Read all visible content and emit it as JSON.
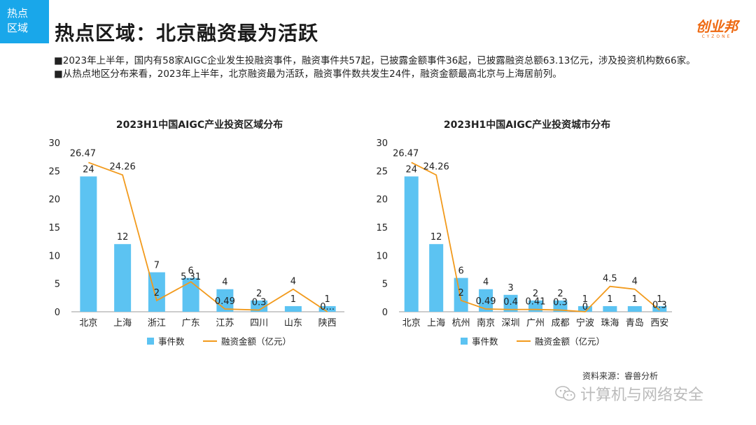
{
  "tag": {
    "line1": "热点",
    "line2": "区域"
  },
  "title": "热点区域：北京融资最为活跃",
  "logo": {
    "cn": "创业邦",
    "en": "CYZONE"
  },
  "bullets": [
    "■2023年上半年，国内有58家AIGC企业发生投融资事件，融资事件共57起，已披露金额事件36起，已披露融资总额63.13亿元，涉及投资机构数66家。",
    "■从热点地区分布来看，2023年上半年，北京融资最为活跃，融资事件数共发生24件，融资金额最高北京与上海居前列。"
  ],
  "colors": {
    "bar": "#5cc3f2",
    "line": "#f29a1c",
    "accent": "#19a7ea"
  },
  "chart_data": [
    {
      "type": "bar",
      "title": "2023H1中国AIGC产业投资区域分布",
      "categories": [
        "北京",
        "上海",
        "浙江",
        "广东",
        "江苏",
        "四川",
        "山东",
        "陕西"
      ],
      "series": [
        {
          "name": "事件数",
          "type": "bar",
          "values": [
            24,
            12,
            7,
            6,
            4,
            2,
            1,
            1
          ],
          "labels": [
            "24",
            "12",
            "7",
            "6",
            "4",
            "2",
            "1",
            "1"
          ]
        },
        {
          "name": "融资金额（亿元）",
          "type": "line",
          "values": [
            26.47,
            24.26,
            2,
            5.31,
            0.49,
            0.3,
            4,
            0
          ],
          "labels": [
            "26.47",
            "24.26",
            "2",
            "5.31",
            "0.49",
            "0.3",
            "4",
            "0..."
          ]
        }
      ],
      "ylim": [
        0,
        30
      ],
      "yticks": [
        "0",
        "5",
        "10",
        "15",
        "20",
        "25",
        "30"
      ],
      "legend": "bottom"
    },
    {
      "type": "bar",
      "title": "2023H1中国AIGC产业投资城市分布",
      "categories": [
        "北京",
        "上海",
        "杭州",
        "南京",
        "深圳",
        "广州",
        "成都",
        "宁波",
        "珠海",
        "青岛",
        "西安"
      ],
      "series": [
        {
          "name": "事件数",
          "type": "bar",
          "values": [
            24,
            12,
            6,
            4,
            3,
            2,
            2,
            1,
            1,
            1,
            1
          ],
          "labels": [
            "24",
            "12",
            "6",
            "4",
            "3",
            "2",
            "2",
            "1",
            "1",
            "1",
            "1"
          ]
        },
        {
          "name": "融资金额（亿元）",
          "type": "line",
          "values": [
            26.47,
            24.26,
            2,
            0.49,
            0.4,
            0.41,
            0.3,
            0,
            4.5,
            4,
            0.3
          ],
          "labels": [
            "26.47",
            "24.26",
            "2",
            "0.49",
            "0.4",
            "0.41",
            "0.3",
            "0",
            "4.5",
            "4",
            "0.3"
          ]
        }
      ],
      "ylim": [
        0,
        30
      ],
      "yticks": [
        "0",
        "5",
        "10",
        "15",
        "20",
        "25",
        "30"
      ],
      "legend": "bottom"
    }
  ],
  "source": "资料来源：睿兽分析",
  "watermark": "计算机与网络安全"
}
